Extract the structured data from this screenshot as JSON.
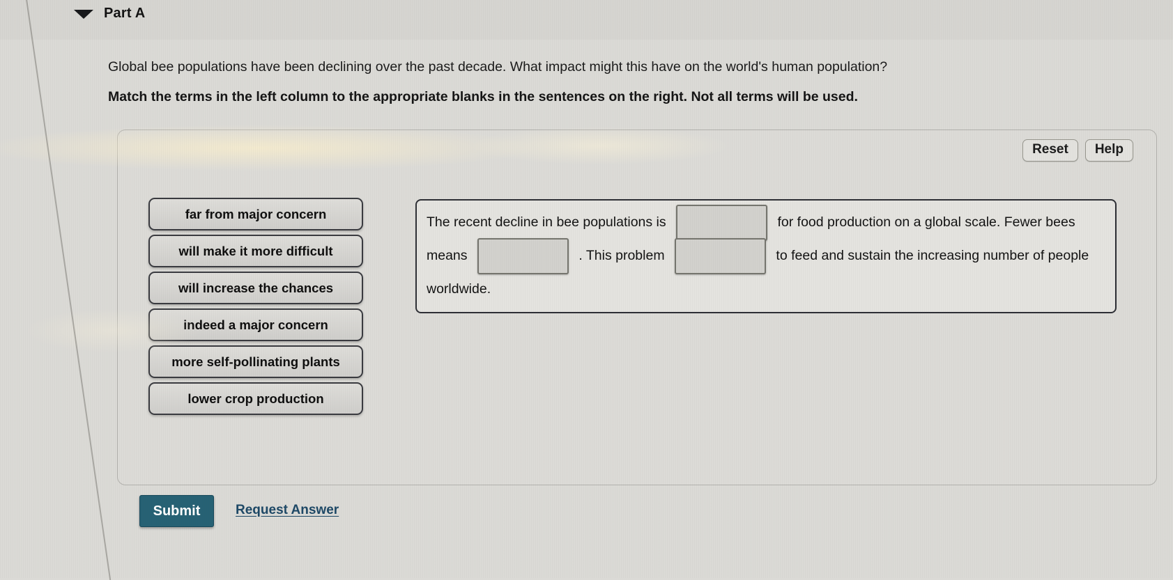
{
  "header": {
    "part_label": "Part A",
    "collapse_icon": "triangle-down-icon"
  },
  "question": {
    "prompt": "Global bee populations have been declining over the past decade. What impact might this have on the world's human population?",
    "instruction": "Match the terms in the left column to the appropriate blanks in the sentences on the right. Not all terms will be used."
  },
  "panel": {
    "reset_label": "Reset",
    "help_label": "Help",
    "terms": [
      "far from major concern",
      "will make it more difficult",
      "will increase the chances",
      "indeed a major concern",
      "more self-pollinating plants",
      "lower crop production"
    ],
    "sentence": {
      "segment_1": "The recent decline in bee populations is",
      "segment_2": "for food production on a global scale. Fewer bees means",
      "segment_3": ". This problem",
      "segment_4": "to feed and sustain the increasing number of people worldwide.",
      "blanks": [
        "",
        "",
        ""
      ]
    }
  },
  "actions": {
    "submit_label": "Submit",
    "request_answer_label": "Request Answer"
  },
  "colors": {
    "page_background": "#dbdad6",
    "term_chip_background": "#d5d4d0",
    "term_chip_border": "#393a3f",
    "blank_fill": "#d2d1cd",
    "blank_border": "#75756e",
    "submit_background": "#266174",
    "submit_text": "#ffffff",
    "link_color": "#1d4866"
  }
}
